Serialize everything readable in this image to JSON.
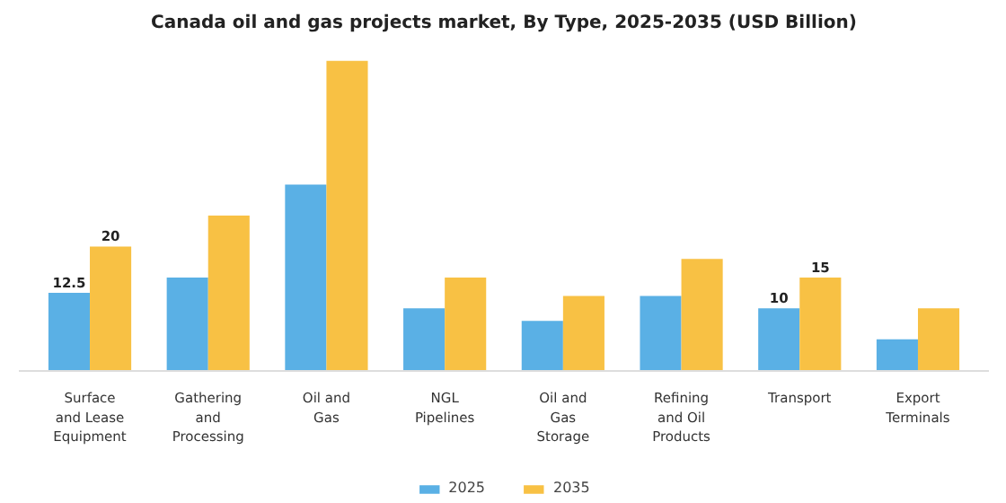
{
  "chart_data": {
    "type": "bar",
    "title": "Canada oil and gas projects market, By Type, 2025-2035 (USD Billion)",
    "categories": [
      "Surface\nand Lease\nEquipment",
      "Gathering\nand\nProcessing",
      "Oil and\nGas",
      "NGL\nPipelines",
      "Oil and\nGas\nStorage",
      "Refining\nand Oil\nProducts",
      "Transport",
      "Export\nTerminals"
    ],
    "series": [
      {
        "name": "2025",
        "color": "#5ab0e5",
        "values": [
          12.5,
          15,
          30,
          10,
          8,
          12,
          10,
          5
        ],
        "value_labels": [
          "12.5",
          null,
          null,
          null,
          null,
          null,
          "10",
          null
        ]
      },
      {
        "name": "2035",
        "color": "#f8c144",
        "values": [
          20,
          25,
          50,
          15,
          12,
          18,
          15,
          10
        ],
        "value_labels": [
          "20",
          null,
          null,
          null,
          null,
          null,
          "15",
          null
        ]
      }
    ],
    "legend": "bottom"
  }
}
